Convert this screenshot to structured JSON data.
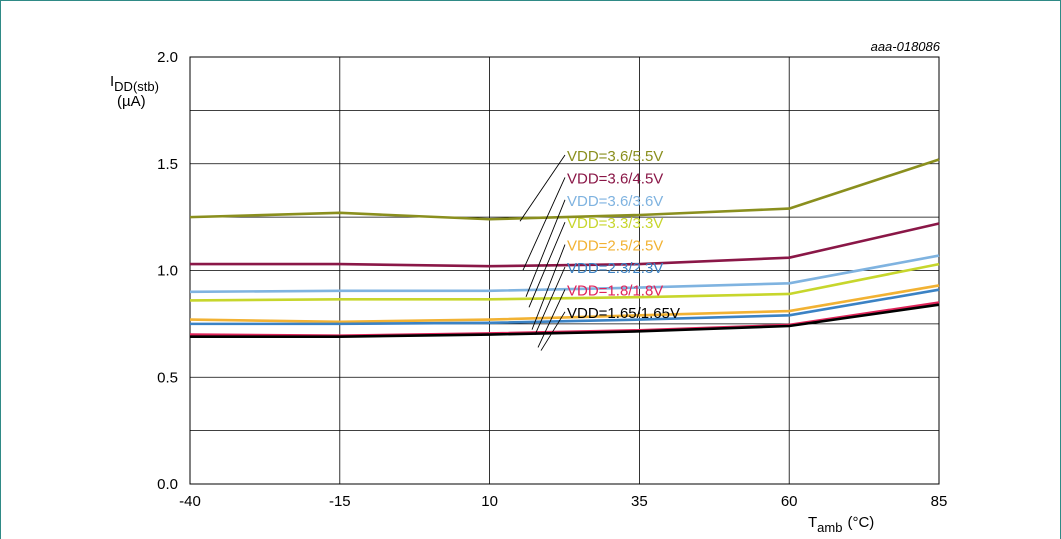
{
  "chart_data": {
    "type": "line",
    "ref_code": "aaa-018086",
    "ylabel": {
      "main": "I",
      "sub": "DD(stb)",
      "unit": "(µA)"
    },
    "xlabel": {
      "main": "T",
      "sub": "amb",
      "unit": "(°C)"
    },
    "xlim": [
      -40,
      85
    ],
    "ylim": [
      0.0,
      2.0
    ],
    "x": [
      -40,
      -15,
      10,
      35,
      60,
      85
    ],
    "x_ticks": [
      "-40",
      "-15",
      "10",
      "35",
      "60",
      "85"
    ],
    "y_ticks": [
      "0.0",
      "0.5",
      "1.0",
      "1.5",
      "2.0"
    ],
    "y_tick_values": [
      0.0,
      0.5,
      1.0,
      1.5,
      2.0
    ],
    "grid": true,
    "series": [
      {
        "name": "VDD=3.6/5.5V",
        "color": "#8a8f1e",
        "values": [
          1.25,
          1.27,
          1.24,
          1.26,
          1.29,
          1.52
        ]
      },
      {
        "name": "VDD=3.6/4.5V",
        "color": "#8a1747",
        "values": [
          1.03,
          1.03,
          1.02,
          1.03,
          1.06,
          1.22
        ]
      },
      {
        "name": "VDD=3.6/3.6V",
        "color": "#7fb3e0",
        "values": [
          0.9,
          0.905,
          0.905,
          0.92,
          0.94,
          1.07
        ]
      },
      {
        "name": "VDD=3.3/3.3V",
        "color": "#c7d62c",
        "values": [
          0.86,
          0.865,
          0.865,
          0.875,
          0.89,
          1.03
        ]
      },
      {
        "name": "VDD=2.5/2.5V",
        "color": "#f2b233",
        "values": [
          0.77,
          0.76,
          0.77,
          0.79,
          0.81,
          0.93
        ]
      },
      {
        "name": "VDD=2.3/2.3V",
        "color": "#3b82c4",
        "values": [
          0.75,
          0.75,
          0.755,
          0.77,
          0.79,
          0.91
        ]
      },
      {
        "name": "VDD=1.8/1.8V",
        "color": "#e0245a",
        "values": [
          0.7,
          0.695,
          0.705,
          0.72,
          0.745,
          0.85
        ]
      },
      {
        "name": "VDD=1.65/1.65V",
        "color": "#000000",
        "values": [
          0.69,
          0.69,
          0.7,
          0.715,
          0.74,
          0.84
        ]
      }
    ]
  }
}
